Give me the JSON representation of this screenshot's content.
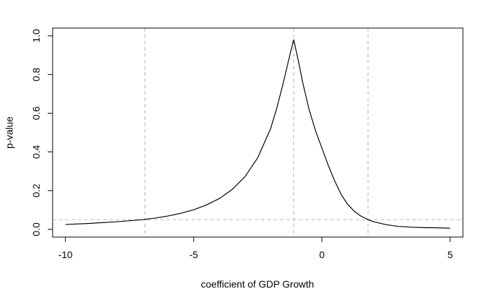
{
  "chart_data": {
    "type": "line",
    "title": "",
    "xlabel": "coefficient of GDP Growth",
    "ylabel": "p-value",
    "xlim": [
      -10.5,
      5.5
    ],
    "ylim": [
      -0.04,
      1.04
    ],
    "x_ticks": [
      -10,
      -5,
      0,
      5
    ],
    "x_tick_labels": [
      "-10",
      "-5",
      "0",
      "5"
    ],
    "y_ticks": [
      0.0,
      0.2,
      0.4,
      0.6,
      0.8,
      1.0
    ],
    "y_tick_labels": [
      "0.0",
      "0.2",
      "0.4",
      "0.6",
      "0.8",
      "1.0"
    ],
    "grid": false,
    "legend": "none",
    "line_color": "#000000",
    "reference_color": "#c0c0c0",
    "series": [
      {
        "x": [
          -10,
          -9,
          -8,
          -7,
          -6.5,
          -6,
          -5.5,
          -5,
          -4.5,
          -4,
          -3.5,
          -3,
          -2.5,
          -2,
          -1.75,
          -1.5,
          -1.25,
          -1.1,
          -0.9,
          -0.75,
          -0.5,
          -0.25,
          0,
          0.25,
          0.5,
          0.75,
          1,
          1.25,
          1.5,
          1.8,
          2,
          2.5,
          3,
          3.5,
          4,
          4.5,
          5
        ],
        "y": [
          0.025,
          0.031,
          0.039,
          0.05,
          0.058,
          0.069,
          0.083,
          0.101,
          0.126,
          0.159,
          0.206,
          0.272,
          0.37,
          0.52,
          0.63,
          0.76,
          0.9,
          0.98,
          0.86,
          0.76,
          0.62,
          0.51,
          0.42,
          0.33,
          0.25,
          0.18,
          0.13,
          0.095,
          0.07,
          0.05,
          0.04,
          0.024,
          0.015,
          0.011,
          0.009,
          0.008,
          0.006
        ]
      }
    ],
    "reference_lines": {
      "vertical": [
        -6.9,
        -1.1,
        1.8
      ],
      "horizontal": [
        0.05
      ]
    }
  }
}
